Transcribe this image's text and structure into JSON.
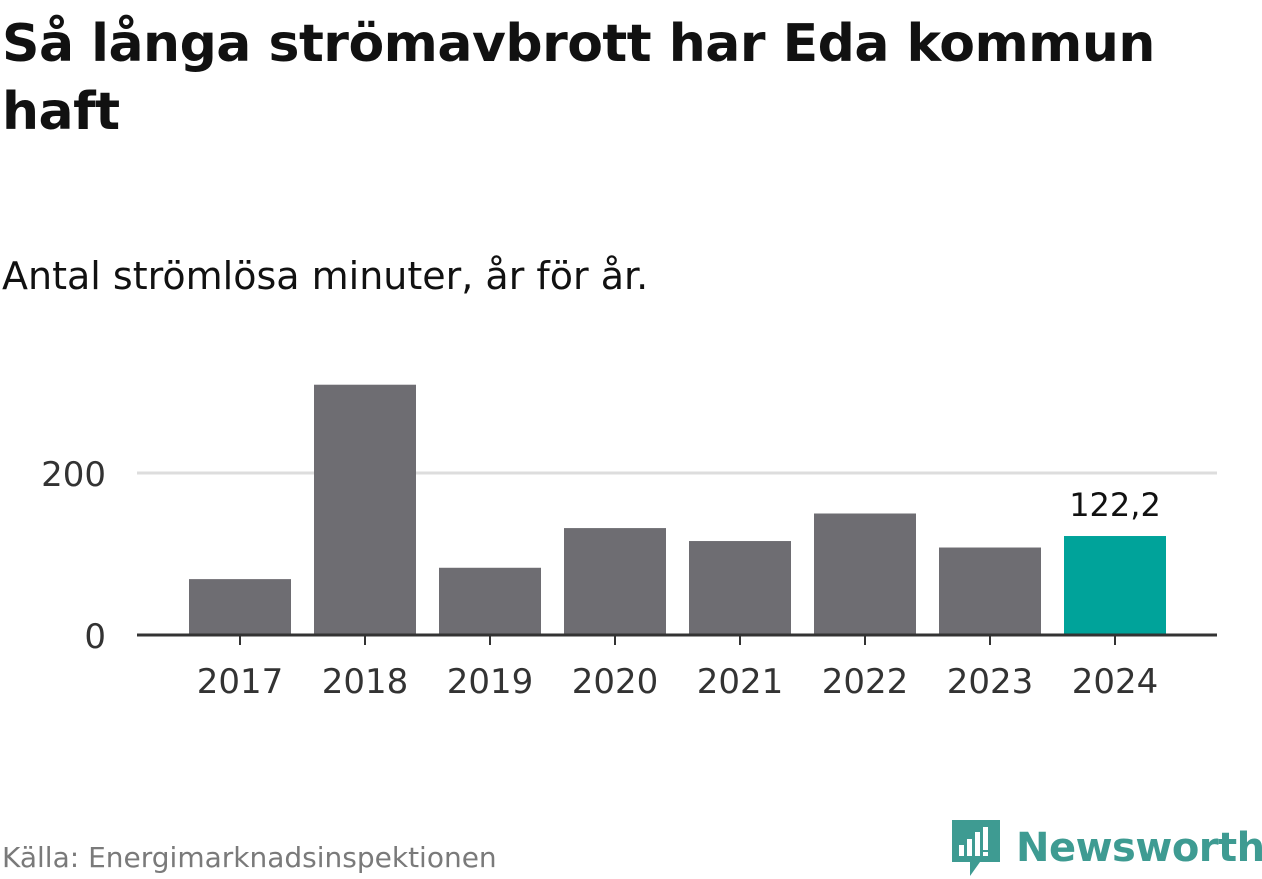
{
  "title": "Så långa strömavbrott har Eda kommun haft",
  "subtitle": "Antal strömlösa minuter, år för år.",
  "source": "Källa: Energimarknadsinspektionen",
  "brand": "Newsworthy",
  "colors": {
    "bar": "#6e6d72",
    "highlight": "#00a39a",
    "grid": "#dddddd",
    "axis": "#333333",
    "brand": "#3e9b92"
  },
  "chart_data": {
    "type": "bar",
    "categories": [
      "2017",
      "2018",
      "2019",
      "2020",
      "2021",
      "2022",
      "2023",
      "2024"
    ],
    "values": [
      69,
      309,
      83,
      132,
      116,
      150,
      108,
      122.2
    ],
    "highlight_index": 7,
    "value_labels": [
      "",
      "",
      "",
      "",
      "",
      "",
      "",
      "122,2"
    ],
    "yticks": [
      0,
      200
    ],
    "ytick_labels": [
      "0",
      "200"
    ],
    "ylim": [
      0,
      320
    ],
    "grid": true,
    "xlabel": "",
    "ylabel": ""
  }
}
